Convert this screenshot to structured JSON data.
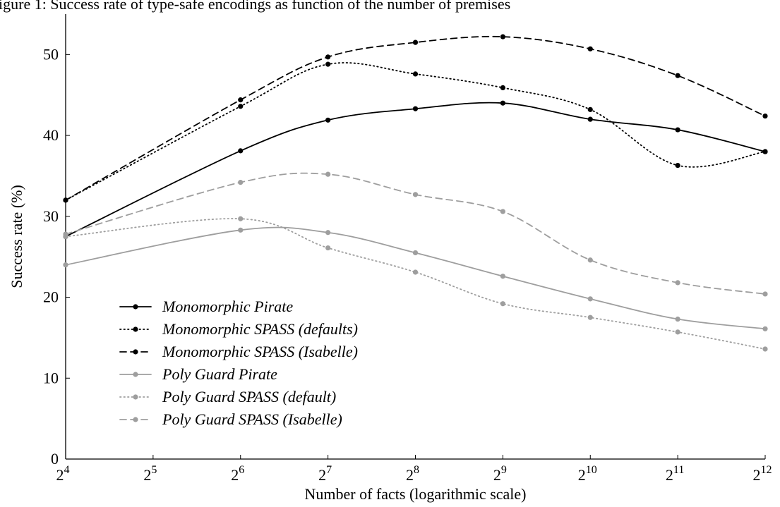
{
  "caption_fragment": "igure 1: Success rate of type-safe encodings as function of the number of premises",
  "chart_data": {
    "type": "line",
    "xlabel": "Number of facts (logarithmic scale)",
    "ylabel": "Success rate (%)",
    "x_scale": "log2",
    "x": [
      16,
      64,
      128,
      256,
      512,
      1024,
      2048,
      4096
    ],
    "xticks": [
      {
        "base": "2",
        "exp": "4",
        "value": 16
      },
      {
        "base": "2",
        "exp": "5",
        "value": 32
      },
      {
        "base": "2",
        "exp": "6",
        "value": 64
      },
      {
        "base": "2",
        "exp": "7",
        "value": 128
      },
      {
        "base": "2",
        "exp": "8",
        "value": 256
      },
      {
        "base": "2",
        "exp": "9",
        "value": 512
      },
      {
        "base": "2",
        "exp": "10",
        "value": 1024
      },
      {
        "base": "2",
        "exp": "11",
        "value": 2048
      },
      {
        "base": "2",
        "exp": "12",
        "value": 4096
      }
    ],
    "yticks": [
      "0",
      "10",
      "20",
      "30",
      "40",
      "50"
    ],
    "ylim": [
      0,
      55
    ],
    "grid": false,
    "legend_position": "bottom-left",
    "series": [
      {
        "name": "Monomorphic Pirate",
        "color": "#000000",
        "dash": "solid",
        "values": [
          27.5,
          38.1,
          41.9,
          43.3,
          44.0,
          42.0,
          40.7,
          38.0
        ]
      },
      {
        "name": "Monomorphic SPASS (defaults)",
        "color": "#000000",
        "dash": "dotted",
        "values": [
          32.0,
          43.6,
          48.8,
          47.6,
          45.9,
          43.2,
          36.3,
          38.0
        ]
      },
      {
        "name": "Monomorphic SPASS (Isabelle)",
        "color": "#000000",
        "dash": "dashed",
        "values": [
          32.0,
          44.4,
          49.7,
          51.5,
          52.2,
          50.7,
          47.4,
          42.4
        ]
      },
      {
        "name": "Poly Guard Pirate",
        "color": "#9e9e9e",
        "dash": "solid",
        "values": [
          24.0,
          28.3,
          28.0,
          25.5,
          22.6,
          19.8,
          17.3,
          16.1
        ]
      },
      {
        "name": "Poly Guard SPASS (default)",
        "color": "#9e9e9e",
        "dash": "dotted",
        "values": [
          27.5,
          29.7,
          26.1,
          23.1,
          19.2,
          17.5,
          15.7,
          13.6
        ]
      },
      {
        "name": "Poly Guard SPASS (Isabelle)",
        "color": "#9e9e9e",
        "dash": "dashed",
        "values": [
          27.8,
          34.2,
          35.2,
          32.7,
          30.6,
          24.6,
          21.8,
          20.4
        ]
      }
    ]
  }
}
